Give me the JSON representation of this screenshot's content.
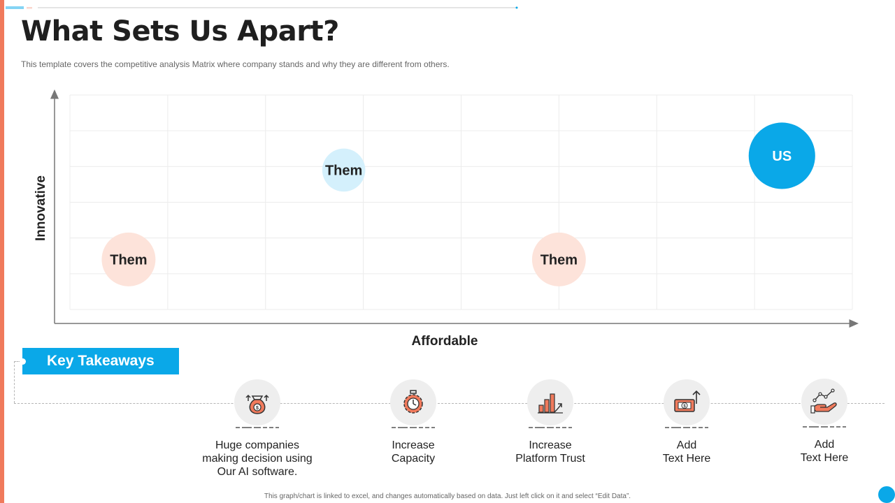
{
  "header": {
    "title": "What Sets Us Apart?",
    "subtitle": "This template covers the competitive analysis Matrix where company stands and why they are different from others."
  },
  "colors": {
    "accent_blue": "#0aa8e8",
    "accent_orange": "#f07a5c",
    "light_blue": "#d4f0fc",
    "light_pink": "#fde3da"
  },
  "chart_data": {
    "type": "scatter",
    "xlabel": "Affordable",
    "ylabel": "Innovative",
    "xlim": [
      0,
      8
    ],
    "ylim": [
      0,
      6
    ],
    "grid": true,
    "series": [
      {
        "values": [
          {
            "label": "Them",
            "x": 0.6,
            "y": 1.4,
            "size": 0.55,
            "color": "#fde3da"
          },
          {
            "label": "Them",
            "x": 2.8,
            "y": 3.9,
            "size": 0.44,
            "color": "#d4f0fc"
          },
          {
            "label": "Them",
            "x": 5.0,
            "y": 1.4,
            "size": 0.55,
            "color": "#fde3da"
          },
          {
            "label": "US",
            "x": 7.28,
            "y": 4.3,
            "size": 0.68,
            "color": "#0aa8e8"
          }
        ]
      }
    ]
  },
  "key_takeaways": {
    "heading": "Key Takeaways",
    "items": [
      {
        "icon": "money-bag-icon",
        "text": "Huge companies\nmaking decision using\nOur AI software."
      },
      {
        "icon": "stopwatch-gear-icon",
        "text": "Increase\nCapacity"
      },
      {
        "icon": "bar-growth-icon",
        "text": "Increase\nPlatform Trust"
      },
      {
        "icon": "dollar-bill-arrow-icon",
        "text": "Add\nText Here"
      },
      {
        "icon": "hand-chart-icon",
        "text": "Add\nText Here"
      }
    ]
  },
  "footer": {
    "note": "This graph/chart is linked to excel, and changes automatically based on data. Just left click on it and select “Edit Data”."
  }
}
